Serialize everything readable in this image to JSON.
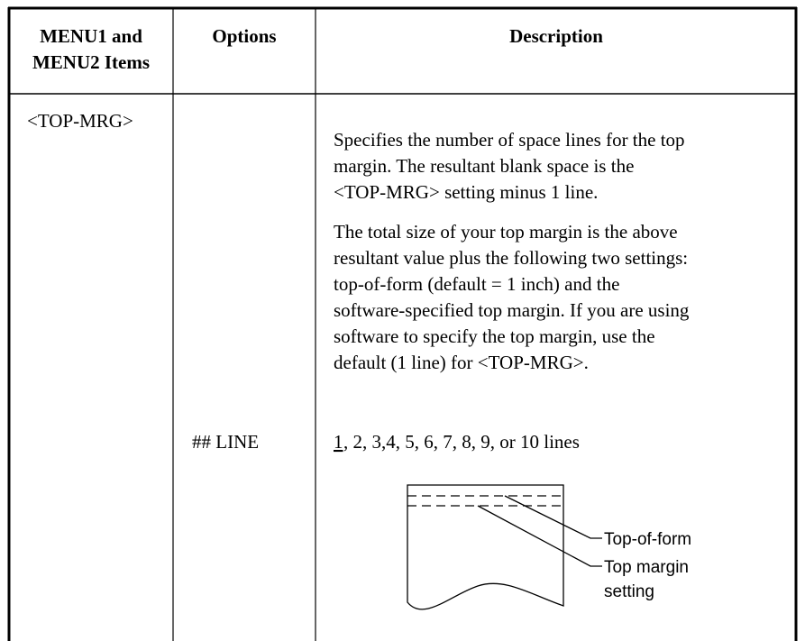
{
  "header": {
    "col1": [
      "MENU1 and",
      "MENU2 Items"
    ],
    "col2": "Options",
    "col3": "Description"
  },
  "row": {
    "item": "<TOP-MRG>",
    "paragraphs": [
      [
        "Specifies the number of space lines for the top",
        "margin. The resultant blank space is the",
        "<TOP-MRG> setting minus 1 line."
      ],
      [
        "The total size of your top margin is the above",
        "resultant value plus the following two settings:",
        "top-of-form (default = 1 inch) and the",
        "software-specified top margin. If you are using",
        "software to specify the top margin, use the",
        "default (1 line) for <TOP-MRG>."
      ]
    ],
    "option": "## LINE",
    "values_default": "1",
    "values_rest": ", 2, 3,4, 5, 6, 7, 8, 9, or 10 lines",
    "figure": {
      "label1": "Top-of-form",
      "label2": [
        "Top margin",
        "setting"
      ]
    }
  }
}
